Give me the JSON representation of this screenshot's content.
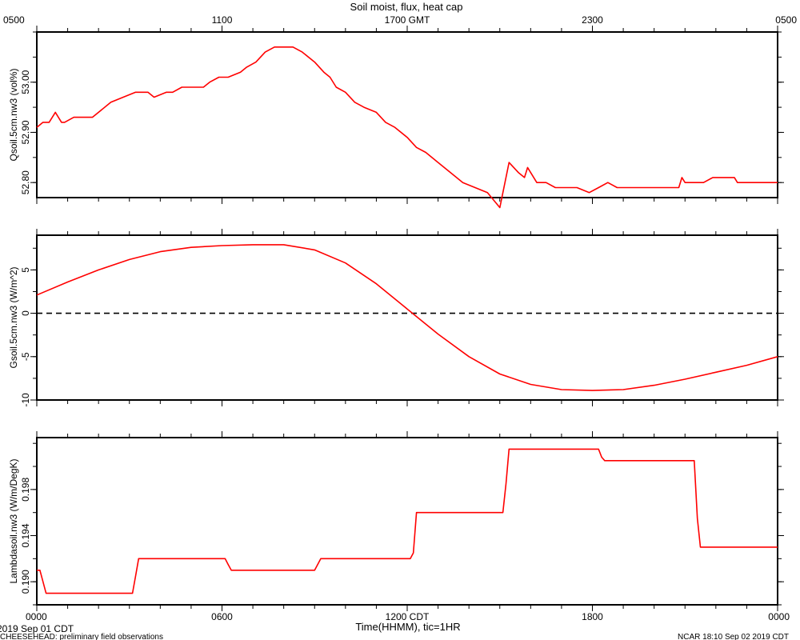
{
  "figure": {
    "title": "Soil moist, flux, heat cap",
    "top_axis_labels": [
      "0500",
      "1100",
      "1700 GMT",
      "2300",
      "0500"
    ],
    "bottom_axis_labels": [
      "0000",
      "0600",
      "1200 CDT",
      "1800",
      "0000"
    ],
    "xlabel": "Time(HHMM), tic=1HR",
    "start_date": "2019 Sep 01 CDT",
    "footer_left": "CHEESEHEAD: preliminary field observations",
    "footer_right": "NCAR 18:10 Sep 02 2019 CDT",
    "line_color": "#ff0000"
  },
  "chart_data": [
    {
      "type": "line",
      "ylabel": "Qsoil.5cm.nw3 (vol%)",
      "ylim": [
        52.77,
        53.1
      ],
      "yticks": [
        52.8,
        52.9,
        53.0
      ],
      "ytick_labels": [
        "52.80",
        "52.90",
        "53.00"
      ],
      "zero_line": false,
      "x_unit": "hours since 0000 CDT",
      "x": [
        0,
        0.2,
        0.4,
        0.6,
        0.8,
        0.9,
        1.2,
        1.4,
        1.8,
        2.4,
        2.8,
        3.2,
        3.6,
        3.8,
        4.2,
        4.4,
        4.7,
        5.0,
        5.4,
        5.6,
        5.9,
        6.2,
        6.6,
        6.8,
        7.1,
        7.4,
        7.7,
        8.0,
        8.3,
        8.6,
        9.0,
        9.3,
        9.5,
        9.7,
        10.0,
        10.3,
        10.6,
        11.0,
        11.3,
        11.6,
        12.0,
        12.3,
        12.6,
        13.0,
        13.4,
        13.8,
        14.2,
        14.6,
        15.0,
        15.3,
        15.6,
        15.8,
        15.9,
        16.2,
        16.5,
        16.8,
        17.0,
        17.5,
        17.9,
        18.2,
        18.5,
        18.8,
        19.2,
        19.6,
        20.0,
        20.4,
        20.8,
        20.9,
        21.0,
        21.3,
        21.6,
        21.9,
        22.3,
        22.6,
        22.7,
        23.0,
        23.5,
        24.0
      ],
      "y": [
        52.91,
        52.92,
        52.92,
        52.94,
        52.92,
        52.92,
        52.93,
        52.93,
        52.93,
        52.96,
        52.97,
        52.98,
        52.98,
        52.97,
        52.98,
        52.98,
        52.99,
        52.99,
        52.99,
        53.0,
        53.01,
        53.01,
        53.02,
        53.03,
        53.04,
        53.06,
        53.07,
        53.07,
        53.07,
        53.06,
        53.04,
        53.02,
        53.01,
        52.99,
        52.98,
        52.96,
        52.95,
        52.94,
        52.92,
        52.91,
        52.89,
        52.87,
        52.86,
        52.84,
        52.82,
        52.8,
        52.79,
        52.78,
        52.75,
        52.84,
        52.82,
        52.81,
        52.83,
        52.8,
        52.8,
        52.79,
        52.79,
        52.79,
        52.78,
        52.79,
        52.8,
        52.79,
        52.79,
        52.79,
        52.79,
        52.79,
        52.79,
        52.81,
        52.8,
        52.8,
        52.8,
        52.81,
        52.81,
        52.81,
        52.8,
        52.8,
        52.8,
        52.8
      ]
    },
    {
      "type": "line",
      "ylabel": "Gsoil.5cm.nw3 (W/m^2)",
      "ylim": [
        -10,
        9
      ],
      "yticks": [
        -10,
        -5,
        0,
        5
      ],
      "ytick_labels": [
        "-10",
        "-5",
        "0",
        "5"
      ],
      "zero_line": true,
      "x_unit": "hours since 0000 CDT",
      "x": [
        0,
        1,
        2,
        3,
        4,
        5,
        6,
        7,
        8,
        9,
        10,
        11,
        12,
        13,
        14,
        15,
        16,
        17,
        18,
        19,
        20,
        21,
        22,
        23,
        24
      ],
      "y": [
        2.1,
        3.6,
        5.0,
        6.2,
        7.1,
        7.6,
        7.8,
        7.9,
        7.9,
        7.3,
        5.8,
        3.4,
        0.5,
        -2.4,
        -5.0,
        -7.0,
        -8.2,
        -8.8,
        -8.9,
        -8.8,
        -8.3,
        -7.6,
        -6.8,
        -6.0,
        -5.0
      ]
    },
    {
      "type": "line",
      "ylabel": "Lambdasoil.nw3 (W/m/DegK)",
      "ylim": [
        0.188,
        0.2025
      ],
      "yticks": [
        0.19,
        0.194,
        0.198
      ],
      "ytick_labels": [
        "0.190",
        "0.194",
        "0.198"
      ],
      "zero_line": false,
      "x_unit": "hours since 0000 CDT",
      "x": [
        0,
        0.1,
        0.3,
        1.5,
        3.1,
        3.2,
        3.3,
        6.1,
        6.2,
        6.3,
        9.0,
        9.1,
        9.2,
        12.1,
        12.2,
        12.3,
        15.1,
        15.2,
        15.3,
        18.2,
        18.3,
        18.4,
        21.3,
        21.4,
        21.5,
        24.0
      ],
      "y": [
        0.191,
        0.191,
        0.189,
        0.189,
        0.189,
        0.1905,
        0.192,
        0.192,
        0.1915,
        0.191,
        0.191,
        0.1915,
        0.192,
        0.192,
        0.1925,
        0.196,
        0.196,
        0.1985,
        0.2015,
        0.2015,
        0.2008,
        0.2005,
        0.2005,
        0.1955,
        0.193,
        0.193
      ]
    }
  ]
}
